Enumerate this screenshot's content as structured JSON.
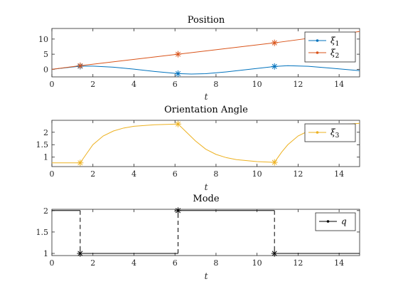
{
  "colors": {
    "xi1": "#0072BD",
    "xi2": "#D95319",
    "xi3": "#EDB120",
    "q": "#000000",
    "axes": "#262626",
    "background": "#ffffff"
  },
  "chart_data": [
    {
      "type": "line",
      "title": "Position",
      "xlabel": "t",
      "ylabel": "",
      "xlim": [
        0,
        15
      ],
      "ylim": [
        -2.5,
        13.5
      ],
      "xticks": [
        0,
        2,
        4,
        6,
        8,
        10,
        12,
        14
      ],
      "yticks": [
        0,
        5,
        10
      ],
      "grid": false,
      "legend_position": "top-right",
      "series": [
        {
          "name": "ξ1",
          "legend_base": "ξ",
          "legend_sub": "1",
          "color_key": "xi1",
          "x": [
            0,
            0.5,
            1.0,
            1.38,
            2.0,
            3.0,
            4.0,
            5.0,
            6.15,
            6.8,
            7.5,
            8.5,
            9.5,
            10.85,
            11.5,
            12.5,
            13.5,
            15
          ],
          "y": [
            0,
            0.38,
            0.75,
            1.02,
            1.05,
            0.7,
            0.05,
            -0.7,
            -1.42,
            -1.55,
            -1.45,
            -0.85,
            -0.1,
            0.95,
            1.2,
            1.0,
            0.45,
            -0.45
          ]
        },
        {
          "name": "ξ2",
          "legend_base": "ξ",
          "legend_sub": "2",
          "color_key": "xi2",
          "x": [
            0,
            1.38,
            6.15,
            10.85,
            15
          ],
          "y": [
            0,
            1.2,
            5.0,
            8.75,
            12.5
          ]
        }
      ],
      "markers": [
        {
          "x": 1.38,
          "y": 1.02,
          "color_key": "xi1"
        },
        {
          "x": 6.15,
          "y": -1.42,
          "color_key": "xi1"
        },
        {
          "x": 10.85,
          "y": 0.95,
          "color_key": "xi1"
        },
        {
          "x": 1.38,
          "y": 1.2,
          "color_key": "xi2"
        },
        {
          "x": 6.15,
          "y": 5.0,
          "color_key": "xi2"
        },
        {
          "x": 10.85,
          "y": 8.75,
          "color_key": "xi2"
        }
      ]
    },
    {
      "type": "line",
      "title": "Orientation Angle",
      "xlabel": "t",
      "ylabel": "",
      "xlim": [
        0,
        15
      ],
      "ylim": [
        0.62,
        2.48
      ],
      "xticks": [
        0,
        2,
        4,
        6,
        8,
        10,
        12,
        14
      ],
      "yticks": [
        1,
        1.5,
        2
      ],
      "grid": false,
      "legend_position": "top-right",
      "series": [
        {
          "name": "ξ3",
          "legend_base": "ξ",
          "legend_sub": "3",
          "color_key": "xi3",
          "x": [
            0,
            1.38,
            1.7,
            2.0,
            2.5,
            3.0,
            3.5,
            4.0,
            5.0,
            6.15,
            6.5,
            7.0,
            7.5,
            8.0,
            8.5,
            9.0,
            10.0,
            10.85,
            11.2,
            11.5,
            12.0,
            12.5,
            13.0,
            14.0,
            15.0
          ],
          "y": [
            0.77,
            0.77,
            1.15,
            1.5,
            1.85,
            2.05,
            2.17,
            2.24,
            2.3,
            2.33,
            2.05,
            1.65,
            1.32,
            1.11,
            0.98,
            0.9,
            0.82,
            0.79,
            1.2,
            1.5,
            1.85,
            2.05,
            2.17,
            2.3,
            2.36
          ]
        }
      ],
      "markers": [
        {
          "x": 1.38,
          "y": 0.77,
          "color_key": "xi3"
        },
        {
          "x": 6.15,
          "y": 2.33,
          "color_key": "xi3"
        },
        {
          "x": 10.85,
          "y": 0.79,
          "color_key": "xi3"
        }
      ]
    },
    {
      "type": "line",
      "title": "Mode",
      "xlabel": "t",
      "ylabel": "",
      "xlim": [
        0,
        15
      ],
      "ylim": [
        0.95,
        2.03
      ],
      "xticks": [
        0,
        2,
        4,
        6,
        8,
        10,
        12,
        14
      ],
      "yticks": [
        1,
        1.5,
        2
      ],
      "grid": false,
      "legend_position": "top-right",
      "series": [
        {
          "name": "q",
          "legend_base": "q",
          "legend_sub": "",
          "color_key": "q",
          "x": [
            0,
            1.38,
            1.38,
            6.15,
            6.15,
            10.85,
            10.85,
            15
          ],
          "y": [
            2,
            2,
            1,
            1,
            2,
            2,
            1,
            1
          ],
          "jumps": [
            {
              "x": 1.38,
              "from": 2,
              "to": 1
            },
            {
              "x": 6.15,
              "from": 1,
              "to": 2
            },
            {
              "x": 10.85,
              "from": 2,
              "to": 1
            }
          ]
        }
      ],
      "markers": [
        {
          "x": 1.38,
          "y": 1,
          "color_key": "q"
        },
        {
          "x": 6.15,
          "y": 2,
          "color_key": "q"
        },
        {
          "x": 10.85,
          "y": 1,
          "color_key": "q"
        }
      ]
    }
  ]
}
